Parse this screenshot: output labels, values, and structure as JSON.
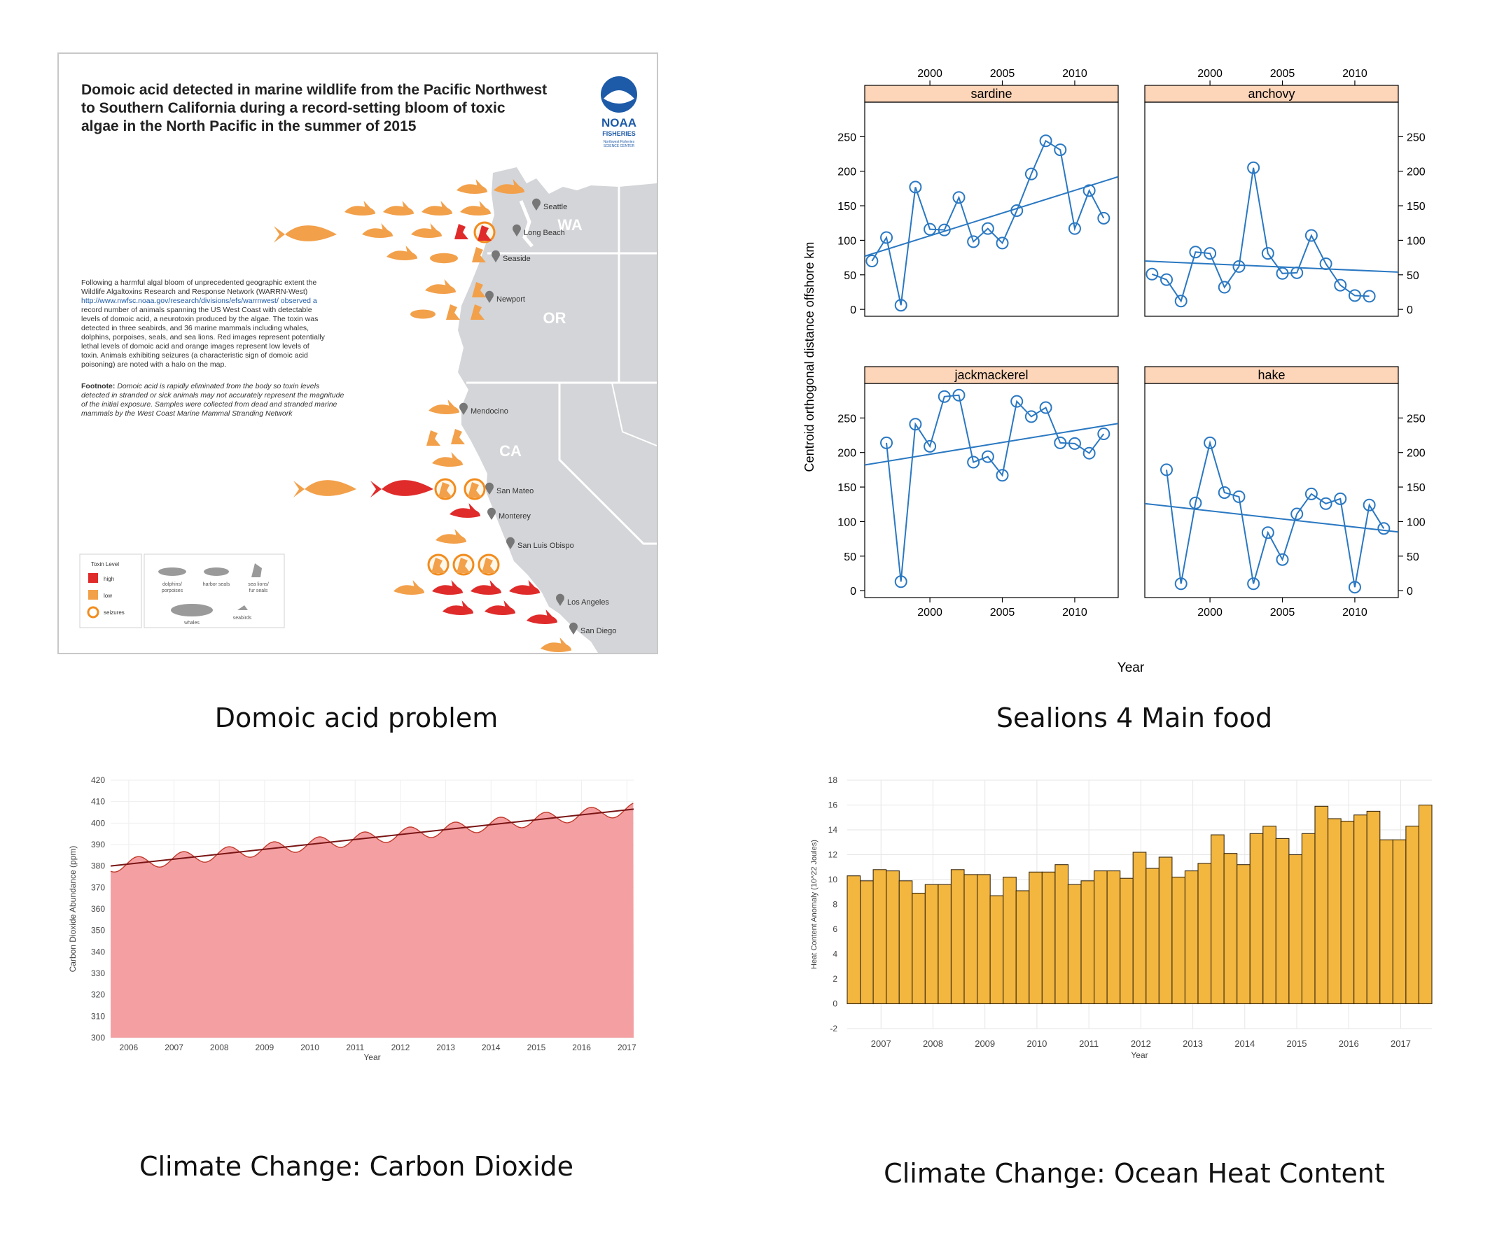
{
  "captions": {
    "map": "Domoic acid problem",
    "fish": "Sealions 4 Main food",
    "co2": "Climate Change: Carbon Dioxide",
    "ohc": "Climate Change: Ocean Heat Content"
  },
  "map": {
    "title_lines": [
      "Domoic acid detected in marine wildlife from the Pacific Northwest",
      "to Southern California during a record-setting bloom of toxic",
      "algae in the North Pacific in the summer of 2015"
    ],
    "logo": {
      "line1": "NOAA",
      "line2": "FISHERIES",
      "line3": "Northwest Fisheries",
      "line4": "SCIENCE CENTER"
    },
    "states": [
      "WA",
      "OR",
      "CA"
    ],
    "cities": [
      "Seattle",
      "Long Beach",
      "Seaside",
      "Newport",
      "Mendocino",
      "San Mateo",
      "Monterey",
      "San Luis Obispo",
      "Los Angeles",
      "San Diego"
    ],
    "body_lines": [
      "Following a harmful algal bloom of unprecedented geographic extent the",
      "Wildlife Algaltoxins Research and Response Network (WARRN-West)",
      "http://www.nwfsc.noaa.gov/research/divisions/efs/warrnwest/ observed a",
      "record number of animals spanning the US West Coast with detectable",
      "levels of domoic acid, a neurotoxin produced by the algae. The toxin was",
      "detected in three seabirds, and 36 marine mammals including whales,",
      "dolphins, porpoises, seals, and sea lions. Red images represent potentially",
      "lethal levels of domoic acid and orange images represent low levels of",
      "toxin. Animals exhibiting seizures (a characteristic sign of domoic acid",
      "poisoning) are noted with a halo on the map."
    ],
    "footnote_label": "Footnote:",
    "footnote_lines": [
      " Domoic acid is rapidly eliminated from the body so toxin levels",
      "detected in stranded or sick animals may not accurately represent the magnitude",
      "of the initial exposure. Samples were collected from dead and stranded marine",
      "mammals by the West Coast Marine Mammal Stranding Network"
    ],
    "legend": {
      "title": "Toxin Level",
      "high": "high",
      "low": "low",
      "seizures": "seizures",
      "dolphins_l1": "dolphins/",
      "dolphins_l2": "porpoises",
      "harbor_seals": "harbor seals",
      "sealions_l1": "sea lions/",
      "sealions_l2": "fur seals",
      "whales": "whales",
      "seabirds": "seabirds"
    },
    "colors": {
      "high": "#e02b2b",
      "low": "#f2a04a",
      "seizure_ring": "#f28c1e",
      "land": "#d4d5d8"
    }
  },
  "chart_data": [
    {
      "id": "fish",
      "type": "scatter",
      "ylabel": "Centroid orthogonal distance offshore  km",
      "xlabel": "Year",
      "xlim": [
        1995.5,
        2013
      ],
      "ylim": [
        -10,
        300
      ],
      "x_ticks": [
        2000,
        2005,
        2010
      ],
      "y_ticks": [
        0,
        50,
        100,
        150,
        200,
        250
      ],
      "color": "#2a78c2",
      "strip_color": "#fdd5b8",
      "panels": [
        {
          "name": "sardine",
          "x": [
            1996,
            1997,
            1998,
            1999,
            2000,
            2001,
            2002,
            2003,
            2004,
            2005,
            2006,
            2007,
            2008,
            2009,
            2010,
            2011,
            2012
          ],
          "y": [
            70,
            104,
            6,
            177,
            116,
            115,
            162,
            98,
            117,
            96,
            143,
            196,
            244,
            231,
            117,
            172,
            132
          ],
          "trend": [
            [
              1995.5,
              77
            ],
            [
              2013,
              192
            ]
          ]
        },
        {
          "name": "anchovy",
          "x": [
            1996,
            1997,
            1998,
            1999,
            2000,
            2001,
            2002,
            2003,
            2004,
            2005,
            2006,
            2007,
            2008,
            2009,
            2010,
            2011
          ],
          "y": [
            51,
            43,
            12,
            83,
            81,
            32,
            62,
            205,
            81,
            52,
            53,
            107,
            66,
            35,
            20,
            19
          ],
          "trend": [
            [
              1995.5,
              70
            ],
            [
              2013,
              54
            ]
          ]
        },
        {
          "name": "jackmackerel",
          "x": [
            1997,
            1998,
            1999,
            2000,
            2001,
            2002,
            2003,
            2004,
            2005,
            2006,
            2007,
            2008,
            2009,
            2010,
            2011,
            2012
          ],
          "y": [
            214,
            13,
            241,
            209,
            281,
            283,
            186,
            194,
            167,
            274,
            252,
            265,
            214,
            213,
            199,
            227
          ],
          "trend": [
            [
              1995.5,
              182
            ],
            [
              2013,
              242
            ]
          ]
        },
        {
          "name": "hake",
          "x": [
            1997,
            1998,
            1999,
            2000,
            2001,
            2002,
            2003,
            2004,
            2005,
            2006,
            2007,
            2008,
            2009,
            2010,
            2011,
            2012
          ],
          "y": [
            175,
            10,
            127,
            214,
            142,
            136,
            10,
            84,
            45,
            111,
            140,
            126,
            133,
            5,
            124,
            90
          ],
          "trend": [
            [
              1995.5,
              126
            ],
            [
              2013,
              85
            ]
          ]
        }
      ]
    },
    {
      "id": "co2",
      "type": "area",
      "ylabel": "Carbon Dioxide Abundance (ppm)",
      "xlabel": "Year",
      "xlim": [
        2005.6,
        2017.15
      ],
      "ylim": [
        300,
        420
      ],
      "y_ticks": [
        300,
        310,
        320,
        330,
        340,
        350,
        360,
        370,
        380,
        390,
        400,
        410,
        420
      ],
      "x_ticks": [
        2006,
        2007,
        2008,
        2009,
        2010,
        2011,
        2012,
        2013,
        2014,
        2015,
        2016,
        2017
      ],
      "trend_start": 380.0,
      "trend_end": 406.5,
      "seasonal_amplitude": 3.0,
      "fill_color": "#f4a0a3",
      "line_color": "#c0392b",
      "trend_color": "#7a1414"
    },
    {
      "id": "ohc",
      "type": "bar",
      "ylabel": "Heat Content Anomaly (10^22 Joules)",
      "xlabel": "Year",
      "ylim": [
        -2,
        18
      ],
      "y_ticks": [
        -2,
        0,
        2,
        4,
        6,
        8,
        10,
        12,
        14,
        16,
        18
      ],
      "x_ticks": [
        2007,
        2008,
        2009,
        2010,
        2011,
        2012,
        2013,
        2014,
        2015,
        2016,
        2017
      ],
      "x_start": 2006.35,
      "x_step": 0.25,
      "values": [
        10.3,
        9.9,
        10.8,
        10.7,
        9.9,
        8.9,
        9.6,
        9.6,
        10.8,
        10.4,
        10.4,
        8.7,
        10.2,
        9.1,
        10.6,
        10.6,
        11.2,
        9.6,
        9.9,
        10.7,
        10.7,
        10.1,
        12.2,
        10.9,
        11.8,
        10.2,
        10.7,
        11.3,
        13.6,
        12.1,
        11.2,
        13.7,
        14.3,
        13.3,
        12.0,
        13.7,
        15.9,
        14.9,
        14.7,
        15.2,
        15.5,
        13.2,
        13.2,
        14.3,
        16.0
      ],
      "bar_color": "#f3b63f",
      "bar_stroke": "#3a2a10"
    }
  ]
}
